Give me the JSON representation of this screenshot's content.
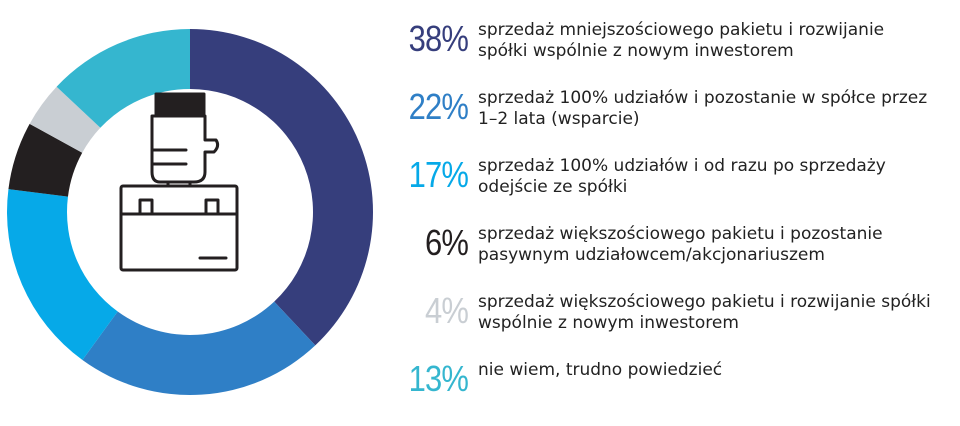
{
  "chart_data": {
    "type": "pie",
    "title": "",
    "style": "donut",
    "center_icon": "hand-holding-briefcase-icon",
    "legend_placement": "right",
    "slices": [
      {
        "value": 38,
        "label_value": "38%",
        "label": "sprzedaż mniejszościowego pakietu i rozwijanie spółki wspólnie z nowym inwestorem",
        "color": "#363e7c"
      },
      {
        "value": 22,
        "label_value": "22%",
        "label": "sprzedaż 100% udziałów i pozostanie w spółce przez 1–2 lata (wsparcie)",
        "color": "#2f7fc6"
      },
      {
        "value": 17,
        "label_value": "17%",
        "label": "sprzedaż 100% udziałów i od razu po sprzedaży odejście ze spółki",
        "color": "#06a9e8"
      },
      {
        "value": 6,
        "label_value": "6%",
        "label": "sprzedaż większościowego pakietu i pozostanie pasywnym udziałowcem/akcjonariuszem",
        "color": "#231f20"
      },
      {
        "value": 4,
        "label_value": "4%",
        "label": "sprzedaż większościowego pakietu i rozwijanie spółki wspólnie z nowym inwestorem",
        "color": "#c9ced3"
      },
      {
        "value": 13,
        "label_value": "13%",
        "label": "nie wiem, trudno powiedzieć",
        "color": "#35b6cf"
      }
    ]
  }
}
